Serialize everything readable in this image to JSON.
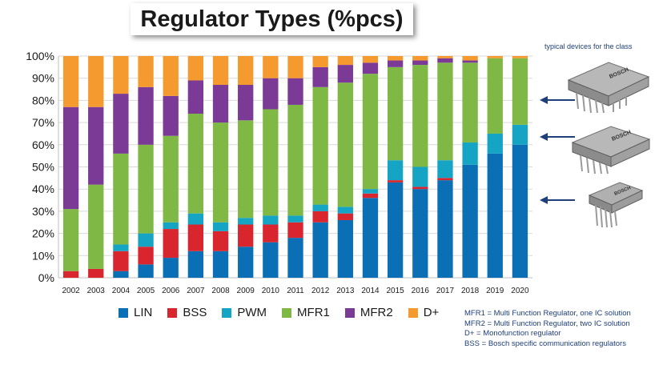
{
  "title": "Regulator Types (%pcs)",
  "side_caption": "typical  devices for the class",
  "device_images": [
    {
      "name": "regulator-ic-multi-pin",
      "marking": "BOSCH"
    },
    {
      "name": "regulator-ic-multi-pin-2",
      "marking": "BOSCH"
    },
    {
      "name": "regulator-ic-5-pin",
      "marking": "BOSCH"
    }
  ],
  "notes": [
    "MFR1  = Multi Function Regulator, one IC solution",
    "MFR2  = Multi Function Regulator, two IC solution",
    "D+ = Monofunction regulator",
    "BSS = Bosch specific communication regulators"
  ],
  "colors": {
    "LIN": "#0b6fb5",
    "BSS": "#d9252e",
    "PWM": "#16a4c4",
    "MFR1": "#7fb845",
    "MFR2": "#7a3a96",
    "D+": "#f59a2f"
  },
  "chart_data": {
    "type": "bar",
    "stacked": true,
    "title": "Regulator Types (%pcs)",
    "xlabel": "",
    "ylabel": "",
    "ylim": [
      0,
      100
    ],
    "yticks": [
      "0%",
      "10%",
      "20%",
      "30%",
      "40%",
      "50%",
      "60%",
      "70%",
      "80%",
      "90%",
      "100%"
    ],
    "categories": [
      "2002",
      "2003",
      "2004",
      "2005",
      "2006",
      "2007",
      "2008",
      "2009",
      "2010",
      "2011",
      "2012",
      "2013",
      "2014",
      "2015",
      "2016",
      "2017",
      "2018",
      "2019",
      "2020"
    ],
    "series": [
      {
        "name": "LIN",
        "values": [
          0,
          0,
          3,
          6,
          9,
          12,
          12,
          14,
          16,
          18,
          25,
          26,
          36,
          43,
          40,
          44,
          51,
          56,
          60
        ]
      },
      {
        "name": "BSS",
        "values": [
          3,
          4,
          9,
          8,
          13,
          12,
          9,
          10,
          8,
          7,
          5,
          3,
          2,
          1,
          1,
          1,
          0,
          0,
          0
        ]
      },
      {
        "name": "PWM",
        "values": [
          0,
          0,
          3,
          6,
          3,
          5,
          4,
          3,
          4,
          3,
          3,
          3,
          2,
          9,
          9,
          8,
          10,
          9,
          9
        ]
      },
      {
        "name": "MFR1",
        "values": [
          28,
          38,
          41,
          40,
          39,
          45,
          45,
          44,
          48,
          50,
          53,
          56,
          52,
          42,
          46,
          44,
          36,
          34,
          30
        ]
      },
      {
        "name": "MFR2",
        "values": [
          46,
          35,
          27,
          26,
          18,
          15,
          17,
          16,
          14,
          12,
          9,
          8,
          5,
          3,
          2,
          2,
          1,
          0,
          0
        ]
      },
      {
        "name": "D+",
        "values": [
          23,
          23,
          17,
          14,
          18,
          11,
          13,
          13,
          10,
          10,
          5,
          4,
          3,
          2,
          2,
          1,
          2,
          1,
          1
        ]
      }
    ],
    "legend": [
      "LIN",
      "BSS",
      "PWM",
      "MFR1",
      "MFR2",
      "D+"
    ],
    "legend_position": "bottom"
  }
}
